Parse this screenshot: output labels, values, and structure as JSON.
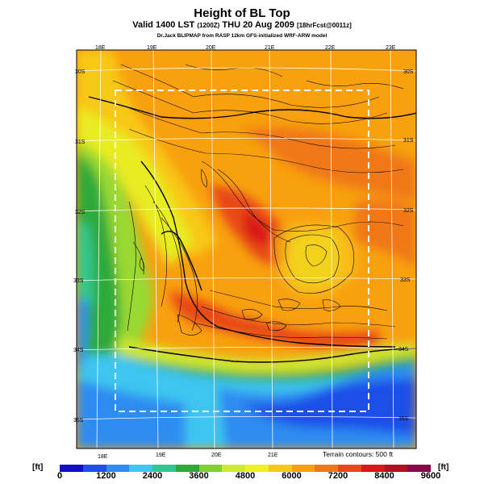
{
  "title": "Height of BL Top",
  "subtitle_main": "Valid 1400 LST",
  "subtitle_time": "(1200Z)",
  "subtitle_date": "THU 20 Aug 2009",
  "subtitle_fcst": "[18hrFcst@0011z]",
  "credit": "Dr.Jack BLIPMAP from RASP 12km GFS-initialized WRF-ARW model",
  "terrain_note": "Terrain contours: 500 ft",
  "unit_label_left": "[ft]",
  "unit_label_right": "[ft]",
  "lon_labels_top": [
    "18E",
    "19E",
    "20E",
    "21E",
    "22E",
    "23E"
  ],
  "lon_labels_bottom": [
    "18E",
    "19E",
    "20E",
    "21E"
  ],
  "lat_labels_left": [
    "30S",
    "31S",
    "32S",
    "33S",
    "34S",
    "35S"
  ],
  "lat_labels_right": [
    "30S",
    "31S",
    "32S",
    "33S",
    "34S",
    "35S"
  ],
  "colorbar": {
    "ticks": [
      "0",
      "1200",
      "2400",
      "3600",
      "4800",
      "6000",
      "7200",
      "8400",
      "9600"
    ],
    "colors": [
      "#1010c8",
      "#1f4fe8",
      "#2f8cf0",
      "#3cc6f0",
      "#30c890",
      "#2faa3a",
      "#7fd030",
      "#cfe830",
      "#f0f020",
      "#f8c818",
      "#f8a010",
      "#f07818",
      "#e84818",
      "#d81818",
      "#b01020",
      "#88084a"
    ]
  },
  "palette": {
    "ocean_deep": "#1f4fe8",
    "ocean": "#2f8cf0",
    "ocean_light": "#3cc6f0",
    "green": "#2faa3a",
    "lime": "#9ad830",
    "yellow": "#e8ec22",
    "yellow_orange": "#f8c818",
    "orange": "#f8a010",
    "dark_orange": "#f07818",
    "red_orange": "#e84818",
    "red": "#d81818"
  }
}
